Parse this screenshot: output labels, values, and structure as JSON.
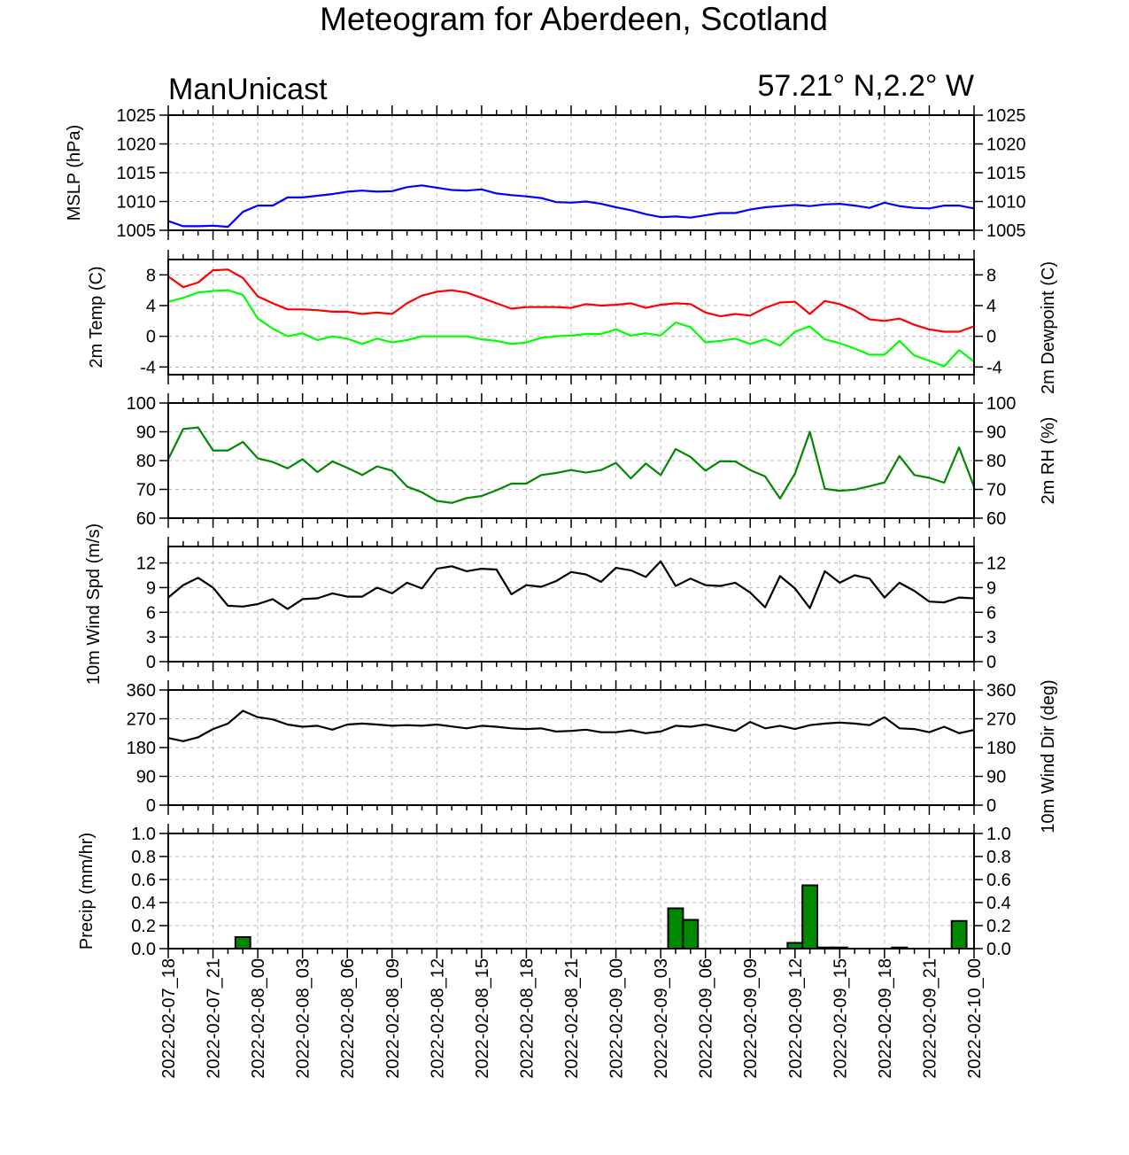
{
  "title": "Meteogram for Aberdeen, Scotland",
  "model_label": "ManUnicast",
  "location_label": "57.21° N,2.2° W",
  "time_axis": {
    "start": "2022-02-07_18",
    "end": "2022-02-10_00",
    "tick_labels": [
      "2022-02-07_18",
      "2022-02-07_21",
      "2022-02-08_00",
      "2022-02-08_03",
      "2022-02-08_06",
      "2022-02-08_09",
      "2022-02-08_12",
      "2022-02-08_15",
      "2022-02-08_18",
      "2022-02-08_21",
      "2022-02-09_00",
      "2022-02-09_03",
      "2022-02-09_06",
      "2022-02-09_09",
      "2022-02-09_12",
      "2022-02-09_15",
      "2022-02-09_18",
      "2022-02-09_21",
      "2022-02-10_00"
    ]
  },
  "chart_data": [
    {
      "type": "line",
      "ylabel": "MSLP (hPa)",
      "ylabel_right": "",
      "ylim": [
        1005,
        1025
      ],
      "yticks": [
        1005,
        1010,
        1015,
        1020,
        1025
      ],
      "tick_labels": [
        "1005",
        "1010",
        "1015",
        "1020",
        "1025"
      ],
      "show_right_labels": true,
      "series": [
        {
          "color": "#0000ff",
          "values": [
            1006.6,
            1005.7,
            1005.7,
            1005.8,
            1005.6,
            1008.2,
            1009.3,
            1009.3,
            1010.7,
            1010.7,
            1011.0,
            1011.3,
            1011.7,
            1011.9,
            1011.7,
            1011.8,
            1012.5,
            1012.8,
            1012.4,
            1012.0,
            1011.9,
            1012.1,
            1011.4,
            1011.1,
            1010.9,
            1010.6,
            1009.9,
            1009.8,
            1010.0,
            1009.6,
            1009.0,
            1008.5,
            1007.8,
            1007.3,
            1007.4,
            1007.2,
            1007.6,
            1008.0,
            1008.0,
            1008.6,
            1009.0,
            1009.2,
            1009.4,
            1009.2,
            1009.5,
            1009.6,
            1009.3,
            1008.9,
            1009.8,
            1009.2,
            1008.9,
            1008.8,
            1009.3,
            1009.3,
            1008.8
          ]
        }
      ]
    },
    {
      "type": "line",
      "ylabel": "2m Temp (C)",
      "ylabel_right": "2m Dewpoint (C)",
      "ylim": [
        -5,
        10
      ],
      "yticks": [
        -4,
        0,
        4,
        8
      ],
      "tick_labels": [
        "-4",
        "0",
        "4",
        "8"
      ],
      "show_right_labels": true,
      "series": [
        {
          "color": "#ff0000",
          "values": [
            7.8,
            6.4,
            7.0,
            8.6,
            8.7,
            7.6,
            5.2,
            4.3,
            3.5,
            3.5,
            3.4,
            3.2,
            3.2,
            2.9,
            3.1,
            2.9,
            4.3,
            5.3,
            5.8,
            6.0,
            5.7,
            5.0,
            4.3,
            3.6,
            3.8,
            3.8,
            3.8,
            3.7,
            4.2,
            4.0,
            4.1,
            4.3,
            3.7,
            4.1,
            4.3,
            4.2,
            3.1,
            2.6,
            2.9,
            2.7,
            3.7,
            4.4,
            4.5,
            2.9,
            4.6,
            4.2,
            3.4,
            2.2,
            2.0,
            2.3,
            1.5,
            0.9,
            0.6,
            0.6,
            1.3
          ]
        },
        {
          "color": "#00ff00",
          "values": [
            4.5,
            5.0,
            5.7,
            5.9,
            6.0,
            5.4,
            2.3,
            1.0,
            0.0,
            0.4,
            -0.5,
            0.0,
            -0.3,
            -1.0,
            -0.3,
            -0.8,
            -0.5,
            0.0,
            0.0,
            0.0,
            0.0,
            -0.4,
            -0.6,
            -1.0,
            -0.8,
            -0.2,
            0.0,
            0.1,
            0.3,
            0.3,
            0.9,
            0.1,
            0.4,
            0.1,
            1.8,
            1.2,
            -0.8,
            -0.6,
            -0.3,
            -1.0,
            -0.4,
            -1.2,
            0.6,
            1.3,
            -0.4,
            -0.9,
            -1.6,
            -2.4,
            -2.4,
            -0.6,
            -2.5,
            -3.2,
            -3.9,
            -1.8,
            -3.3
          ]
        }
      ]
    },
    {
      "type": "line",
      "ylabel": "",
      "ylabel_right": "2m RH (%)",
      "ylim": [
        60,
        100
      ],
      "yticks": [
        60,
        70,
        80,
        90,
        100
      ],
      "tick_labels": [
        "60",
        "70",
        "80",
        "90",
        "100"
      ],
      "show_right_labels": true,
      "series": [
        {
          "color": "#008800",
          "values": [
            80.5,
            91.0,
            91.5,
            83.5,
            83.5,
            86.5,
            80.8,
            79.5,
            77.3,
            80.5,
            76.0,
            79.7,
            77.5,
            75.0,
            78.0,
            76.5,
            71.0,
            69.0,
            66.0,
            65.3,
            67.0,
            67.7,
            69.7,
            72.0,
            72.0,
            75.0,
            75.7,
            76.7,
            75.8,
            76.7,
            79.2,
            73.8,
            79.0,
            75.0,
            84.0,
            81.3,
            76.5,
            79.8,
            79.7,
            76.7,
            74.5,
            66.8,
            75.5,
            90.0,
            70.2,
            69.5,
            69.9,
            71.1,
            72.4,
            81.6,
            75.0,
            74.0,
            72.3,
            84.6,
            71.0
          ]
        }
      ]
    },
    {
      "type": "line",
      "ylabel": "10m Wind Spd (m/s)",
      "ylabel_right": "",
      "ylim": [
        0,
        14
      ],
      "yticks": [
        0,
        3,
        6,
        9,
        12
      ],
      "tick_labels": [
        "0",
        "3",
        "6",
        "9",
        "12"
      ],
      "show_right_labels": true,
      "series": [
        {
          "color": "#000000",
          "values": [
            7.8,
            9.3,
            10.2,
            9.0,
            6.8,
            6.7,
            7.0,
            7.6,
            6.4,
            7.6,
            7.7,
            8.3,
            7.9,
            7.9,
            9.0,
            8.3,
            9.6,
            8.9,
            11.3,
            11.6,
            11.0,
            11.3,
            11.2,
            8.2,
            9.3,
            9.1,
            9.8,
            10.9,
            10.6,
            9.7,
            11.4,
            11.1,
            10.3,
            12.2,
            9.2,
            10.1,
            9.3,
            9.2,
            9.6,
            8.4,
            6.6,
            10.4,
            8.9,
            6.5,
            11.0,
            9.6,
            10.5,
            10.1,
            7.8,
            9.6,
            8.6,
            7.3,
            7.2,
            7.8,
            7.7
          ]
        }
      ]
    },
    {
      "type": "line",
      "ylabel": "",
      "ylabel_right": "10m Wind Dir (deg)",
      "ylim": [
        0,
        360
      ],
      "yticks": [
        0,
        90,
        180,
        270,
        360
      ],
      "tick_labels": [
        "0",
        "90",
        "180",
        "270",
        "360"
      ],
      "show_right_labels": true,
      "series": [
        {
          "color": "#000000",
          "values": [
            210,
            200,
            212,
            238,
            255,
            295,
            275,
            268,
            252,
            245,
            248,
            236,
            252,
            255,
            252,
            248,
            250,
            248,
            252,
            246,
            240,
            248,
            245,
            240,
            238,
            240,
            230,
            232,
            236,
            228,
            228,
            234,
            225,
            230,
            248,
            245,
            252,
            242,
            232,
            260,
            240,
            248,
            238,
            250,
            255,
            258,
            255,
            250,
            275,
            240,
            238,
            228,
            245,
            225,
            235
          ]
        }
      ]
    },
    {
      "type": "bar",
      "ylabel": "Precip (mm/hr)",
      "ylabel_right": "",
      "ylim": [
        0,
        1
      ],
      "yticks": [
        0,
        0.2,
        0.4,
        0.6,
        0.8,
        1.0
      ],
      "tick_labels": [
        "0.0",
        "0.2",
        "0.4",
        "0.6",
        "0.8",
        "1.0"
      ],
      "show_right_labels": true,
      "series": [
        {
          "color": "#008800",
          "values": [
            0,
            0,
            0,
            0,
            0,
            0.1,
            0,
            0,
            0,
            0,
            0,
            0,
            0,
            0,
            0,
            0,
            0,
            0,
            0,
            0,
            0,
            0,
            0,
            0,
            0,
            0,
            0,
            0,
            0,
            0,
            0,
            0,
            0,
            0,
            0.35,
            0.25,
            0,
            0,
            0,
            0,
            0,
            0,
            0.05,
            0.55,
            0.01,
            0.01,
            0,
            0,
            0,
            0.01,
            0,
            0,
            0,
            0.24,
            0
          ]
        }
      ]
    }
  ]
}
